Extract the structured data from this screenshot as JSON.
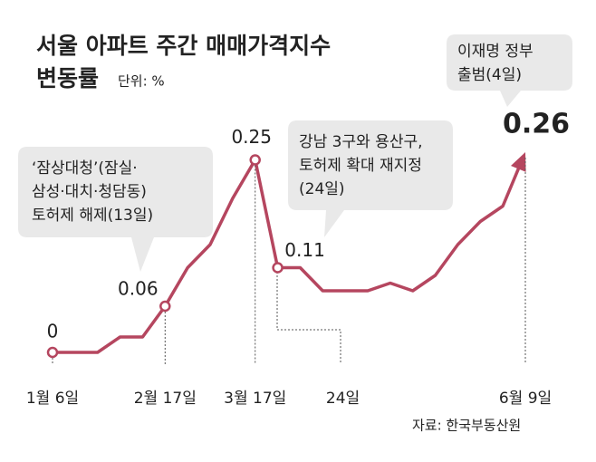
{
  "chart_data": {
    "type": "line",
    "title": "서울 아파트 주간 매매가격지수",
    "subtitle": "변동률",
    "unit": "단위: %",
    "source": "자료: 한국부동산원",
    "categories": [
      "1월 6일",
      null,
      null,
      null,
      null,
      "2월 17일",
      null,
      null,
      null,
      "3월 17일",
      "24일",
      null,
      null,
      null,
      null,
      null,
      null,
      null,
      null,
      null,
      null,
      "6월 9일"
    ],
    "values": [
      0,
      0,
      0,
      0.02,
      0.02,
      0.06,
      0.11,
      0.14,
      0.2,
      0.25,
      0.11,
      0.11,
      0.08,
      0.08,
      0.08,
      0.09,
      0.08,
      0.1,
      0.14,
      0.17,
      0.19,
      0.26
    ],
    "value_labels": [
      "0",
      null,
      null,
      null,
      null,
      "0.06",
      null,
      null,
      null,
      "0.25",
      "0.11",
      null,
      null,
      null,
      null,
      null,
      null,
      null,
      null,
      null,
      null,
      "0.26"
    ],
    "color": "#b5465f",
    "ylim": [
      0,
      0.3
    ],
    "annotations": [
      {
        "lines": [
          "‘잠상대청’(잠실·",
          "삼성·대치·청담동)",
          "토허제 해제(13일)"
        ]
      },
      {
        "lines": [
          "강남 3구와 용산구,",
          "토허제 확대 재지정",
          "(24일)"
        ]
      },
      {
        "lines": [
          "이재명 정부",
          "출범(4일)"
        ]
      }
    ]
  }
}
